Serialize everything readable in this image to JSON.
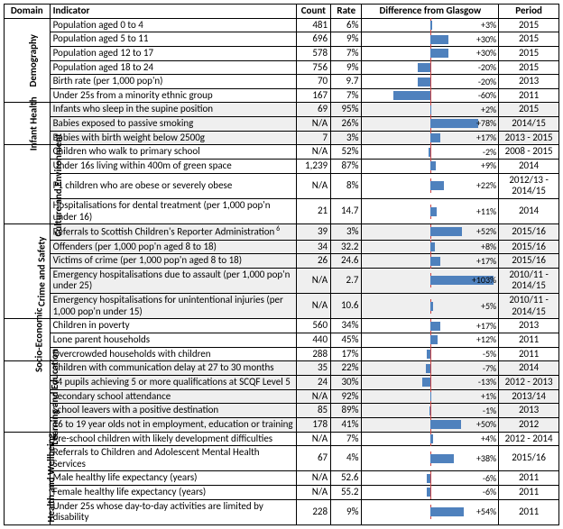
{
  "headers": {
    "domain": "Domain",
    "indicator": "Indicator",
    "count": "Count",
    "rate": "Rate",
    "diff": "Difference from Glasgow",
    "period": "Period"
  },
  "bar_color": "#4f81bd",
  "axis_color": "#c44",
  "max_abs_pct": 110,
  "groups": [
    {
      "domain": "Demography",
      "rows": [
        {
          "indicator": "Population aged 0 to 4",
          "count": "481",
          "rate": "6%",
          "pct": 3,
          "period": "2015",
          "shade": false
        },
        {
          "indicator": "Population aged 5 to 11",
          "count": "696",
          "rate": "9%",
          "pct": 30,
          "period": "2015",
          "shade": false
        },
        {
          "indicator": "Population aged 12 to 17",
          "count": "578",
          "rate": "7%",
          "pct": 30,
          "period": "2015",
          "shade": false
        },
        {
          "indicator": "Population aged 18 to 24",
          "count": "756",
          "rate": "9%",
          "pct": -20,
          "period": "2015",
          "shade": false
        },
        {
          "indicator": "Birth rate (per 1,000 pop'n)",
          "count": "70",
          "rate": "9.7",
          "pct": -20,
          "period": "2013",
          "shade": false
        },
        {
          "indicator": "Under 25s from a minority ethnic group",
          "count": "167",
          "rate": "7%",
          "pct": -60,
          "period": "2011",
          "shade": false
        }
      ]
    },
    {
      "domain": "Infant Health",
      "rows": [
        {
          "indicator": "Infants who sleep in the supine position",
          "count": "69",
          "rate": "95%",
          "pct": 2,
          "period": "2015",
          "shade": true
        },
        {
          "indicator": "Babies exposed to passive smoking",
          "count": "N/A",
          "rate": "26%",
          "pct": 78,
          "period": "2014/15",
          "shade": true
        },
        {
          "indicator": "Babies with birth weight below 2500g",
          "count": "7",
          "rate": "3%",
          "pct": 17,
          "period": "2013 - 2015",
          "shade": true
        }
      ]
    },
    {
      "domain": "Culture and Environment",
      "rows": [
        {
          "indicator": "Children who walk to primary school",
          "count": "N/A",
          "rate": "52%",
          "pct": -2,
          "period": "2008 - 2015",
          "shade": false
        },
        {
          "indicator": "Under 16s living within 400m of green space",
          "count": "1,239",
          "rate": "87%",
          "pct": 9,
          "period": "2014",
          "shade": false
        },
        {
          "indicator": "P1 children who are obese or severely obese",
          "count": "N/A",
          "rate": "8%",
          "pct": 22,
          "period": "2012/13 - 2014/15",
          "shade": false
        },
        {
          "indicator": "Hospitalisations for dental treatment (per 1,000 pop'n under 16)",
          "count": "21",
          "rate": "14.7",
          "pct": 11,
          "period": "2014",
          "shade": false
        }
      ]
    },
    {
      "domain": "Crime and Safety",
      "rows": [
        {
          "indicator": "Referrals to Scottish Children's Reporter Administration<sup> 6</sup>",
          "count": "39",
          "rate": "3%",
          "pct": 52,
          "period": "2015/16",
          "shade": true
        },
        {
          "indicator": "Offenders (per 1,000 pop'n aged 8 to 18)",
          "count": "34",
          "rate": "32.2",
          "pct": 8,
          "period": "2015/16",
          "shade": true
        },
        {
          "indicator": "Victims of crime (per 1,000 pop'n aged 8 to 18)",
          "count": "26",
          "rate": "24.6",
          "pct": 17,
          "period": "2015/16",
          "shade": true
        },
        {
          "indicator": "Emergency hospitalisations due to assault (per 1,000 pop'n under 25)",
          "count": "N/A",
          "rate": "2.7",
          "pct": 103,
          "period": "2010/11 - 2014/15",
          "shade": true
        },
        {
          "indicator": "Emergency hospitalisations for unintentional injuries (per 1,000 pop'n under 15)",
          "count": "N/A",
          "rate": "10.6",
          "pct": 5,
          "period": "2010/11 - 2014/15",
          "shade": true
        }
      ]
    },
    {
      "domain": "Socio-Economic",
      "rows": [
        {
          "indicator": "Children in poverty",
          "count": "560",
          "rate": "34%",
          "pct": 17,
          "period": "2013",
          "shade": false
        },
        {
          "indicator": "Lone parent households",
          "count": "440",
          "rate": "45%",
          "pct": 12,
          "period": "2011",
          "shade": false
        },
        {
          "indicator": "Overcrowded households with children",
          "count": "288",
          "rate": "17%",
          "pct": -5,
          "period": "2011",
          "shade": false
        }
      ]
    },
    {
      "domain": "Learning and Education",
      "rows": [
        {
          "indicator": "Children with communication delay at 27 to 30 months",
          "count": "35",
          "rate": "22%",
          "pct": -7,
          "period": "2014",
          "shade": true
        },
        {
          "indicator": "S4 pupils achieving 5 or more qualifications at SCQF Level 5",
          "count": "24",
          "rate": "30%",
          "pct": -13,
          "period": "2012 - 2013",
          "shade": true
        },
        {
          "indicator": "Secondary school attendance",
          "count": "N/A",
          "rate": "92%",
          "pct": 1,
          "period": "2013/14",
          "shade": true
        },
        {
          "indicator": "School leavers with a positive destination",
          "count": "85",
          "rate": "89%",
          "pct": -1,
          "period": "2013",
          "shade": true
        },
        {
          "indicator": "16 to 19 year olds not in employment, education or training",
          "count": "178",
          "rate": "41%",
          "pct": 50,
          "period": "2012",
          "shade": true
        }
      ]
    },
    {
      "domain": "Health and Wellbeing",
      "rows": [
        {
          "indicator": "Pre-school children with likely development difficulties",
          "count": "N/A",
          "rate": "7%",
          "pct": 4,
          "period": "2012 - 2014",
          "shade": false
        },
        {
          "indicator": "Referrals to Children and Adolescent Mental Health Services",
          "count": "67",
          "rate": "4%",
          "pct": 38,
          "period": "2015/16",
          "shade": false
        },
        {
          "indicator": "Male healthy life expectancy (years)",
          "count": "N/A",
          "rate": "52.6",
          "pct": -6,
          "period": "2011",
          "shade": false
        },
        {
          "indicator": "Female healthy life expectancy (years)",
          "count": "N/A",
          "rate": "55.2",
          "pct": -6,
          "period": "2011",
          "shade": false
        },
        {
          "indicator": "Under 25s whose day-to-day activities are limited by disability",
          "count": "228",
          "rate": "9%",
          "pct": 54,
          "period": "2011",
          "shade": false
        }
      ]
    }
  ]
}
